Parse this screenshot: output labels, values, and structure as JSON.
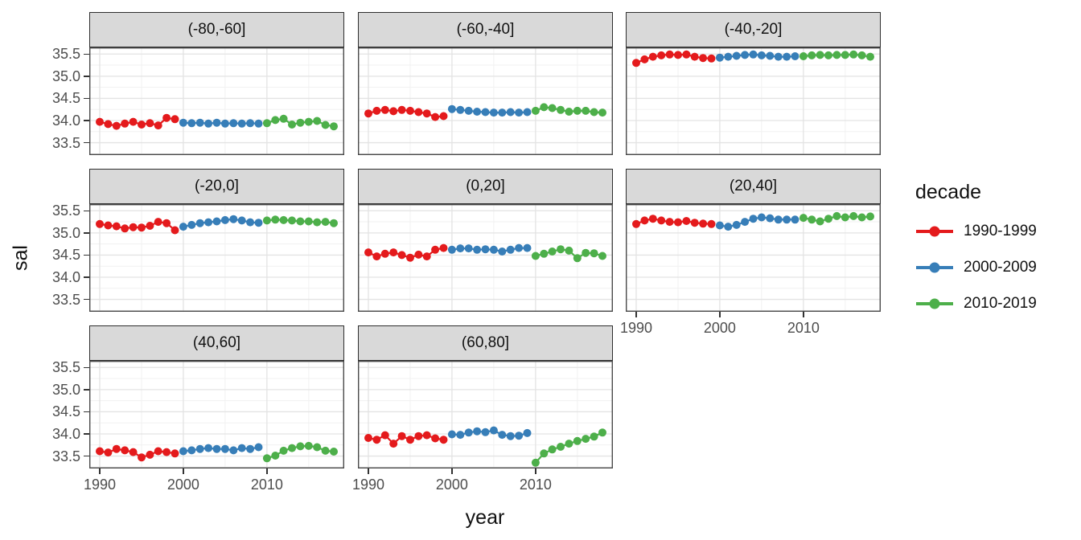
{
  "chart_data": {
    "type": "scatter",
    "title": "",
    "xlabel": "year",
    "ylabel": "sal",
    "grid": "on",
    "xlim": [
      1988.75,
      2019.25
    ],
    "ylim": [
      33.22,
      35.65
    ],
    "x_ticks": [
      1990,
      2000,
      2010
    ],
    "x_tick_labels": [
      "1990",
      "2000",
      "2010"
    ],
    "x_minor_ticks": [
      1995,
      2005,
      2015
    ],
    "y_ticks": [
      35.5,
      35.0,
      34.5,
      34.0,
      33.5
    ],
    "y_tick_labels": [
      "35.5",
      "35.0",
      "34.5",
      "34.0",
      "33.5"
    ],
    "y_minor_ticks": [
      35.25,
      34.75,
      34.25,
      33.75,
      33.25
    ],
    "legend": {
      "title": "decade",
      "position": "right",
      "items": [
        {
          "label": "1990-1999",
          "color": "#E41A1C"
        },
        {
          "label": "2000-2009",
          "color": "#377EB8"
        },
        {
          "label": "2010-2019",
          "color": "#4DAF4A"
        }
      ]
    },
    "series_meta": [
      {
        "name": "1990-1999",
        "color": "#E41A1C",
        "start_year": 1990
      },
      {
        "name": "2000-2009",
        "color": "#377EB8",
        "start_year": 2000
      },
      {
        "name": "2010-2019",
        "color": "#4DAF4A",
        "start_year": 2010
      }
    ],
    "facets": [
      {
        "label": "(-80,-60]",
        "series": [
          {
            "name": "1990-1999",
            "values": [
              33.97,
              33.92,
              33.88,
              33.93,
              33.97,
              33.91,
              33.94,
              33.89,
              34.06,
              34.03
            ]
          },
          {
            "name": "2000-2009",
            "values": [
              33.95,
              33.94,
              33.95,
              33.93,
              33.95,
              33.93,
              33.94,
              33.93,
              33.94,
              33.93
            ]
          },
          {
            "name": "2010-2019",
            "values": [
              33.94,
              34.01,
              34.04,
              33.91,
              33.95,
              33.97,
              33.99,
              33.9,
              33.87
            ]
          }
        ]
      },
      {
        "label": "(-60,-40]",
        "series": [
          {
            "name": "1990-1999",
            "values": [
              34.16,
              34.22,
              34.24,
              34.21,
              34.24,
              34.22,
              34.19,
              34.16,
              34.08,
              34.1
            ]
          },
          {
            "name": "2000-2009",
            "values": [
              34.26,
              34.24,
              34.22,
              34.2,
              34.19,
              34.18,
              34.18,
              34.19,
              34.18,
              34.19
            ]
          },
          {
            "name": "2010-2019",
            "values": [
              34.22,
              34.3,
              34.28,
              34.24,
              34.2,
              34.22,
              34.22,
              34.19,
              34.18
            ]
          }
        ]
      },
      {
        "label": "(-40,-20]",
        "series": [
          {
            "name": "1990-1999",
            "values": [
              35.3,
              35.38,
              35.44,
              35.47,
              35.49,
              35.48,
              35.49,
              35.44,
              35.41,
              35.4
            ]
          },
          {
            "name": "2000-2009",
            "values": [
              35.42,
              35.44,
              35.46,
              35.48,
              35.49,
              35.47,
              35.46,
              35.44,
              35.44,
              35.45
            ]
          },
          {
            "name": "2010-2019",
            "values": [
              35.45,
              35.47,
              35.48,
              35.47,
              35.48,
              35.48,
              35.49,
              35.47,
              35.44
            ]
          }
        ]
      },
      {
        "label": "(-20,0]",
        "series": [
          {
            "name": "1990-1999",
            "values": [
              35.2,
              35.17,
              35.15,
              35.1,
              35.13,
              35.12,
              35.16,
              35.25,
              35.22,
              35.06
            ]
          },
          {
            "name": "2000-2009",
            "values": [
              35.14,
              35.18,
              35.22,
              35.24,
              35.26,
              35.29,
              35.31,
              35.28,
              35.24,
              35.23
            ]
          },
          {
            "name": "2010-2019",
            "values": [
              35.28,
              35.3,
              35.29,
              35.28,
              35.26,
              35.26,
              35.24,
              35.25,
              35.22
            ]
          }
        ]
      },
      {
        "label": "(0,20]",
        "series": [
          {
            "name": "1990-1999",
            "values": [
              34.56,
              34.47,
              34.53,
              34.56,
              34.5,
              34.44,
              34.51,
              34.47,
              34.62,
              34.66
            ]
          },
          {
            "name": "2000-2009",
            "values": [
              34.62,
              34.65,
              34.65,
              34.62,
              34.63,
              34.62,
              34.58,
              34.62,
              34.66,
              34.66
            ]
          },
          {
            "name": "2010-2019",
            "values": [
              34.48,
              34.53,
              34.58,
              34.63,
              34.6,
              34.43,
              34.55,
              34.54,
              34.48
            ]
          }
        ]
      },
      {
        "label": "(20,40]",
        "series": [
          {
            "name": "1990-1999",
            "values": [
              35.2,
              35.28,
              35.32,
              35.28,
              35.25,
              35.24,
              35.27,
              35.23,
              35.21,
              35.2
            ]
          },
          {
            "name": "2000-2009",
            "values": [
              35.17,
              35.14,
              35.18,
              35.25,
              35.32,
              35.35,
              35.33,
              35.3,
              35.3,
              35.3
            ]
          },
          {
            "name": "2010-2019",
            "values": [
              35.34,
              35.3,
              35.26,
              35.32,
              35.38,
              35.35,
              35.38,
              35.35,
              35.37
            ]
          }
        ]
      },
      {
        "label": "(40,60]",
        "series": [
          {
            "name": "1990-1999",
            "values": [
              33.61,
              33.58,
              33.66,
              33.63,
              33.59,
              33.47,
              33.53,
              33.61,
              33.59,
              33.56
            ]
          },
          {
            "name": "2000-2009",
            "values": [
              33.61,
              33.63,
              33.66,
              33.68,
              33.66,
              33.66,
              33.63,
              33.68,
              33.66,
              33.7
            ]
          },
          {
            "name": "2010-2019",
            "values": [
              33.45,
              33.51,
              33.62,
              33.68,
              33.72,
              33.73,
              33.7,
              33.62,
              33.6
            ]
          }
        ]
      },
      {
        "label": "(60,80]",
        "series": [
          {
            "name": "1990-1999",
            "values": [
              33.91,
              33.87,
              33.97,
              33.78,
              33.95,
              33.87,
              33.95,
              33.97,
              33.9,
              33.87
            ]
          },
          {
            "name": "2000-2009",
            "values": [
              33.99,
              33.98,
              34.03,
              34.06,
              34.04,
              34.08,
              33.98,
              33.95,
              33.96,
              34.02
            ]
          },
          {
            "name": "2010-2019",
            "values": [
              33.35,
              33.56,
              33.65,
              33.71,
              33.78,
              33.84,
              33.89,
              33.94,
              34.03
            ]
          }
        ]
      }
    ],
    "style": {
      "strip_fill": "#D9D9D9",
      "strip_border": "#2e2e2e",
      "panel_border": "#4a4a4a",
      "grid_major": "#e3e3e3",
      "grid_minor": "#f1f1f1",
      "tick_color": "#333333",
      "tick_label_color": "#4d4d4d"
    }
  }
}
